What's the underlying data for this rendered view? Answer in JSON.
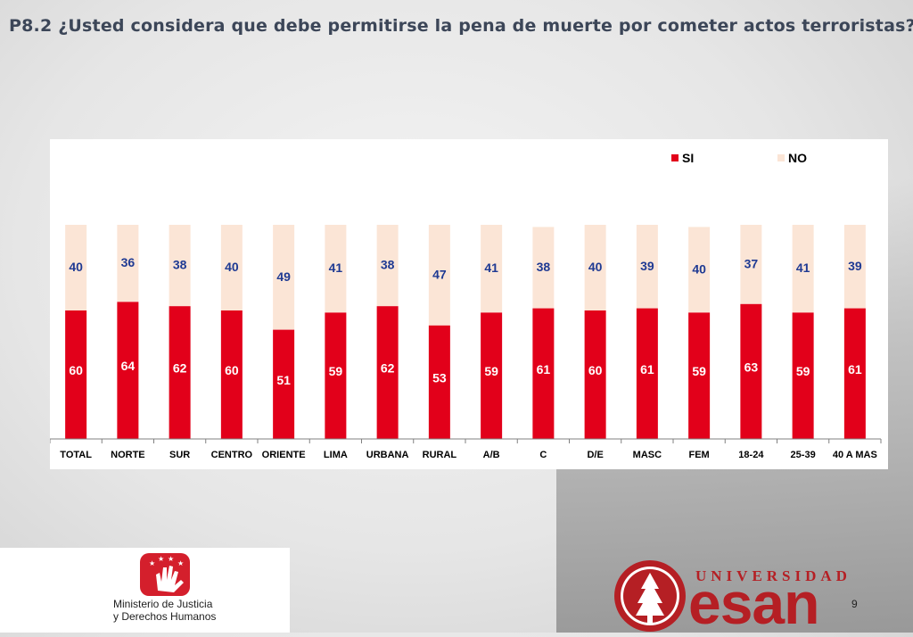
{
  "title": "P8.2 ¿Usted considera que debe permitirse la pena de muerte por cometer actos terroristas?",
  "chart_data": {
    "type": "bar",
    "stacked": true,
    "categories": [
      "TOTAL",
      "NORTE",
      "SUR",
      "CENTRO",
      "ORIENTE",
      "LIMA",
      "URBANA",
      "RURAL",
      "A/B",
      "C",
      "D/E",
      "MASC",
      "FEM",
      "18-24",
      "25-39",
      "40 A MAS"
    ],
    "series": [
      {
        "name": "SI",
        "color": "#e2001a",
        "label_color": "#ffffff",
        "values": [
          60,
          64,
          62,
          60,
          51,
          59,
          62,
          53,
          59,
          61,
          60,
          61,
          59,
          63,
          59,
          61
        ]
      },
      {
        "name": "NO",
        "color": "#fbe5d6",
        "label_color": "#1f3a93",
        "values": [
          40,
          36,
          38,
          40,
          49,
          41,
          38,
          47,
          41,
          38,
          40,
          39,
          40,
          37,
          41,
          39
        ]
      }
    ],
    "ylim": [
      0,
      100
    ],
    "legend_position": "top-right",
    "grid": false
  },
  "page_number": "9",
  "ministerio": {
    "line1": "Ministerio de Justicia",
    "line2": "y Derechos Humanos"
  },
  "esan": {
    "universidad": "UNIVERSIDAD",
    "name": "esan"
  },
  "colors": {
    "si": "#e2001a",
    "no": "#fbe5d6",
    "no_label": "#1f3a93",
    "title": "#3c4658",
    "brand_red": "#b51f24"
  }
}
